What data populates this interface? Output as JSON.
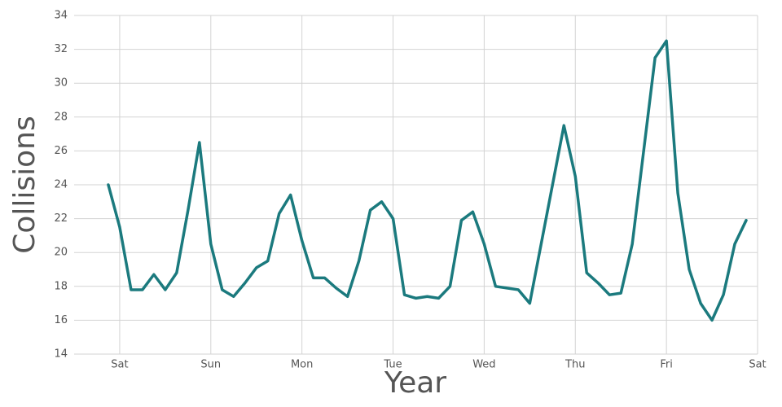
{
  "chart_data": {
    "type": "line",
    "xlabel": "Year",
    "ylabel": "Collisions",
    "x": [
      -3,
      0,
      3,
      6,
      9,
      12,
      15,
      18,
      21,
      24,
      27,
      30,
      33,
      36,
      39,
      42,
      45,
      48,
      51,
      54,
      57,
      60,
      63,
      66,
      69,
      72,
      75,
      78,
      81,
      84,
      87,
      90,
      93,
      96,
      99,
      102,
      105,
      108,
      111,
      114,
      117,
      120,
      123,
      126,
      129,
      132,
      135,
      138,
      141,
      144,
      147,
      150,
      153,
      156,
      159,
      162,
      165
    ],
    "series": [
      {
        "color": "#1b7a7e",
        "values": [
          24.0,
          21.5,
          17.8,
          17.8,
          18.7,
          17.8,
          18.8,
          22.5,
          26.5,
          20.5,
          17.8,
          17.4,
          18.2,
          19.1,
          19.5,
          22.3,
          23.4,
          20.7,
          18.5,
          18.5,
          17.9,
          17.4,
          19.5,
          22.5,
          23.0,
          22.0,
          17.5,
          17.3,
          17.4,
          17.3,
          18.0,
          21.9,
          22.4,
          20.5,
          18.0,
          17.9,
          17.8,
          17.0,
          20.5,
          24.0,
          27.5,
          24.5,
          18.8,
          18.2,
          17.5,
          17.6,
          20.5,
          26.0,
          31.5,
          32.5,
          23.5,
          19.0,
          17.0,
          16.0,
          17.5,
          20.5,
          21.9
        ]
      }
    ],
    "xlim": [
      -12,
      168
    ],
    "xticks": [
      {
        "value": 0,
        "label": "Sat"
      },
      {
        "value": 24,
        "label": "Sun"
      },
      {
        "value": 48,
        "label": "Mon"
      },
      {
        "value": 72,
        "label": "Tue"
      },
      {
        "value": 96,
        "label": "Wed"
      },
      {
        "value": 120,
        "label": "Thu"
      },
      {
        "value": 144,
        "label": "Fri"
      },
      {
        "value": 168,
        "label": "Sat"
      }
    ],
    "ylim": [
      14,
      34
    ],
    "yticks": [
      14,
      16,
      18,
      20,
      22,
      24,
      26,
      28,
      30,
      32,
      34
    ],
    "grid": true
  }
}
